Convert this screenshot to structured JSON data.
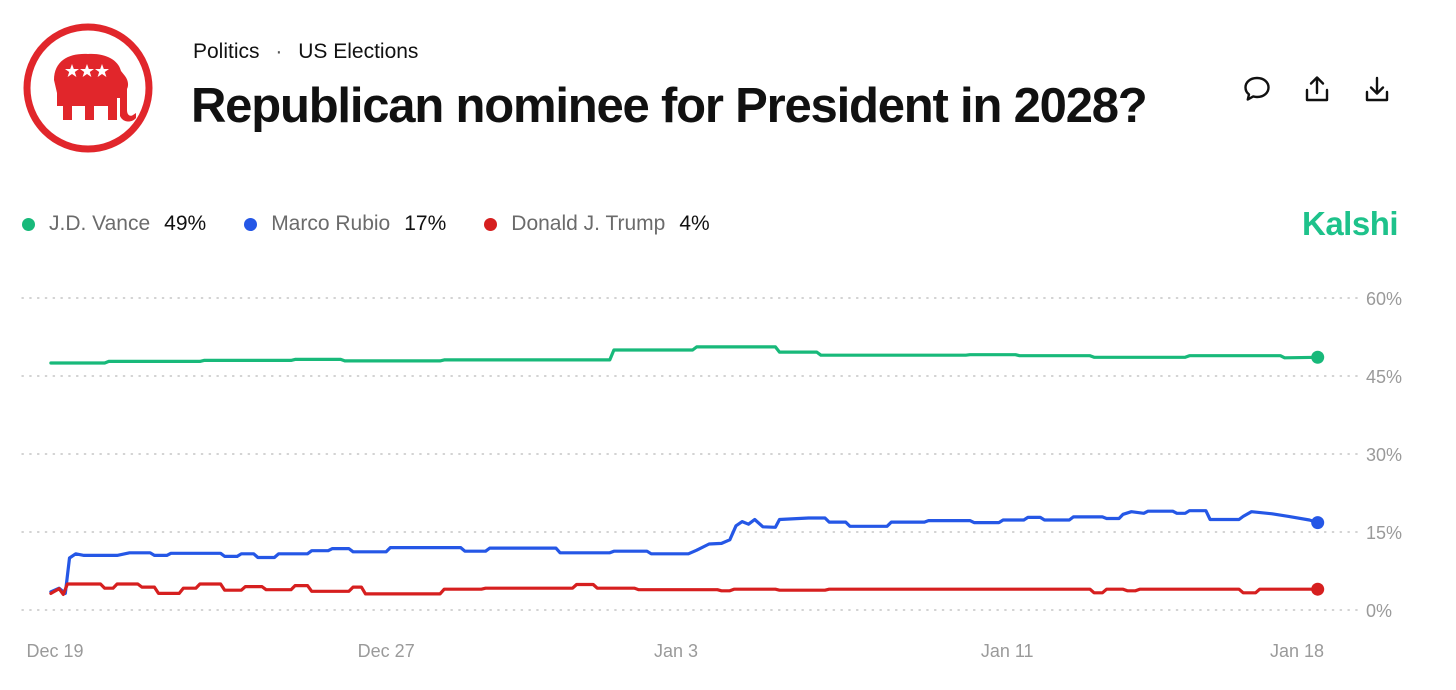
{
  "header": {
    "breadcrumb": [
      "Politics",
      "US Elections"
    ],
    "title": "Republican nominee for President in 2028?"
  },
  "brand": {
    "name": "Kalshi",
    "color": "#1ec28b"
  },
  "actions": [
    {
      "name": "comment-icon"
    },
    {
      "name": "share-icon"
    },
    {
      "name": "download-icon"
    }
  ],
  "legend": [
    {
      "name": "J.D. Vance",
      "value": "49%",
      "color": "#18b97a"
    },
    {
      "name": "Marco Rubio",
      "value": "17%",
      "color": "#2557e6"
    },
    {
      "name": "Donald J. Trump",
      "value": "4%",
      "color": "#d61f1f"
    }
  ],
  "chart_data": {
    "type": "line",
    "title": "Republican nominee for President in 2028?",
    "xlabel": "",
    "ylabel": "",
    "ylim": [
      0,
      60
    ],
    "yticks": [
      0,
      15,
      30,
      45,
      60
    ],
    "ytick_labels": [
      "0%",
      "15%",
      "30%",
      "45%",
      "60%"
    ],
    "xlim": [
      0,
      30
    ],
    "xticks": [
      {
        "t": 0,
        "label": "Dec 19"
      },
      {
        "t": 8,
        "label": "Dec 27"
      },
      {
        "t": 15,
        "label": "Jan 3"
      },
      {
        "t": 23,
        "label": "Jan 11"
      },
      {
        "t": 30,
        "label": "Jan 18"
      }
    ],
    "grid": true,
    "series": [
      {
        "name": "J.D. Vance",
        "color": "#18b97a",
        "points": [
          [
            -0.1,
            47.5
          ],
          [
            1.2,
            47.5
          ],
          [
            1.3,
            47.8
          ],
          [
            3.5,
            47.8
          ],
          [
            3.6,
            48.0
          ],
          [
            5.7,
            48.0
          ],
          [
            5.8,
            48.2
          ],
          [
            6.9,
            48.2
          ],
          [
            7.0,
            47.9
          ],
          [
            9.3,
            47.9
          ],
          [
            9.4,
            48.1
          ],
          [
            13.4,
            48.1
          ],
          [
            13.5,
            50.0
          ],
          [
            15.4,
            50.0
          ],
          [
            15.5,
            50.6
          ],
          [
            17.4,
            50.6
          ],
          [
            17.5,
            49.6
          ],
          [
            18.4,
            49.6
          ],
          [
            18.5,
            49.0
          ],
          [
            22.0,
            49.0
          ],
          [
            22.1,
            49.1
          ],
          [
            23.2,
            49.1
          ],
          [
            23.3,
            48.9
          ],
          [
            25.0,
            48.9
          ],
          [
            25.1,
            48.6
          ],
          [
            27.3,
            48.6
          ],
          [
            27.4,
            48.9
          ],
          [
            29.6,
            48.9
          ],
          [
            29.7,
            48.5
          ],
          [
            30.5,
            48.6
          ]
        ]
      },
      {
        "name": "Marco Rubio",
        "color": "#2557e6",
        "points": [
          [
            -0.1,
            3.5
          ],
          [
            0.1,
            4.2
          ],
          [
            0.25,
            3.2
          ],
          [
            0.35,
            10.0
          ],
          [
            0.5,
            10.8
          ],
          [
            0.7,
            10.5
          ],
          [
            1.5,
            10.5
          ],
          [
            1.8,
            11.0
          ],
          [
            2.3,
            11.0
          ],
          [
            2.4,
            10.5
          ],
          [
            2.7,
            10.5
          ],
          [
            2.8,
            10.9
          ],
          [
            4.0,
            10.9
          ],
          [
            4.1,
            10.3
          ],
          [
            4.4,
            10.3
          ],
          [
            4.5,
            10.8
          ],
          [
            4.8,
            10.8
          ],
          [
            4.9,
            10.1
          ],
          [
            5.3,
            10.1
          ],
          [
            5.4,
            10.8
          ],
          [
            6.1,
            10.8
          ],
          [
            6.2,
            11.4
          ],
          [
            6.6,
            11.4
          ],
          [
            6.7,
            11.8
          ],
          [
            7.1,
            11.8
          ],
          [
            7.2,
            11.2
          ],
          [
            8.0,
            11.2
          ],
          [
            8.1,
            12.0
          ],
          [
            9.8,
            12.0
          ],
          [
            9.9,
            11.3
          ],
          [
            10.4,
            11.3
          ],
          [
            10.5,
            11.9
          ],
          [
            12.1,
            11.9
          ],
          [
            12.2,
            11.0
          ],
          [
            13.4,
            11.0
          ],
          [
            13.5,
            11.3
          ],
          [
            14.3,
            11.3
          ],
          [
            14.4,
            10.8
          ],
          [
            15.3,
            10.8
          ],
          [
            15.5,
            11.5
          ],
          [
            15.8,
            12.7
          ],
          [
            16.1,
            12.8
          ],
          [
            16.3,
            13.5
          ],
          [
            16.45,
            16.2
          ],
          [
            16.6,
            17.0
          ],
          [
            16.75,
            16.5
          ],
          [
            16.9,
            17.4
          ],
          [
            17.1,
            16.0
          ],
          [
            17.4,
            15.9
          ],
          [
            17.5,
            17.4
          ],
          [
            18.2,
            17.7
          ],
          [
            18.6,
            17.7
          ],
          [
            18.7,
            16.9
          ],
          [
            19.1,
            16.9
          ],
          [
            19.2,
            16.1
          ],
          [
            20.1,
            16.1
          ],
          [
            20.2,
            16.9
          ],
          [
            21.0,
            16.9
          ],
          [
            21.1,
            17.2
          ],
          [
            22.1,
            17.2
          ],
          [
            22.2,
            16.8
          ],
          [
            22.8,
            16.8
          ],
          [
            22.9,
            17.3
          ],
          [
            23.4,
            17.3
          ],
          [
            23.5,
            17.8
          ],
          [
            23.8,
            17.8
          ],
          [
            23.9,
            17.3
          ],
          [
            24.5,
            17.3
          ],
          [
            24.6,
            17.9
          ],
          [
            25.3,
            17.9
          ],
          [
            25.4,
            17.6
          ],
          [
            25.7,
            17.6
          ],
          [
            25.8,
            18.4
          ],
          [
            26.0,
            18.9
          ],
          [
            26.3,
            18.6
          ],
          [
            26.4,
            19.0
          ],
          [
            27.0,
            19.0
          ],
          [
            27.1,
            18.6
          ],
          [
            27.3,
            18.6
          ],
          [
            27.4,
            19.1
          ],
          [
            27.8,
            19.1
          ],
          [
            27.9,
            17.4
          ],
          [
            28.6,
            17.4
          ],
          [
            28.7,
            18.0
          ],
          [
            28.9,
            18.9
          ],
          [
            29.4,
            18.5
          ],
          [
            29.8,
            18.0
          ],
          [
            30.3,
            17.3
          ],
          [
            30.5,
            16.8
          ]
        ]
      },
      {
        "name": "Donald J. Trump",
        "color": "#d61f1f",
        "points": [
          [
            -0.1,
            3.2
          ],
          [
            0.1,
            4.1
          ],
          [
            0.2,
            3.0
          ],
          [
            0.3,
            5.0
          ],
          [
            1.1,
            5.0
          ],
          [
            1.2,
            4.2
          ],
          [
            1.4,
            4.2
          ],
          [
            1.5,
            5.0
          ],
          [
            2.0,
            5.0
          ],
          [
            2.1,
            4.4
          ],
          [
            2.4,
            4.4
          ],
          [
            2.5,
            3.2
          ],
          [
            3.0,
            3.2
          ],
          [
            3.1,
            4.2
          ],
          [
            3.4,
            4.2
          ],
          [
            3.5,
            5.0
          ],
          [
            4.0,
            5.0
          ],
          [
            4.1,
            3.8
          ],
          [
            4.5,
            3.8
          ],
          [
            4.6,
            4.5
          ],
          [
            5.0,
            4.5
          ],
          [
            5.1,
            3.9
          ],
          [
            5.7,
            3.9
          ],
          [
            5.8,
            4.7
          ],
          [
            6.1,
            4.7
          ],
          [
            6.2,
            3.6
          ],
          [
            7.1,
            3.6
          ],
          [
            7.2,
            4.4
          ],
          [
            7.4,
            4.4
          ],
          [
            7.5,
            3.1
          ],
          [
            9.3,
            3.1
          ],
          [
            9.4,
            4.0
          ],
          [
            10.3,
            4.0
          ],
          [
            10.4,
            4.2
          ],
          [
            12.5,
            4.2
          ],
          [
            12.6,
            4.9
          ],
          [
            13.0,
            4.9
          ],
          [
            13.1,
            4.2
          ],
          [
            14.0,
            4.2
          ],
          [
            14.1,
            3.9
          ],
          [
            16.0,
            3.9
          ],
          [
            16.1,
            3.7
          ],
          [
            16.3,
            3.7
          ],
          [
            16.4,
            4.0
          ],
          [
            17.4,
            4.0
          ],
          [
            17.5,
            3.8
          ],
          [
            18.6,
            3.8
          ],
          [
            18.7,
            4.0
          ],
          [
            25.0,
            4.0
          ],
          [
            25.1,
            3.3
          ],
          [
            25.3,
            3.3
          ],
          [
            25.4,
            4.0
          ],
          [
            25.8,
            4.0
          ],
          [
            25.9,
            3.7
          ],
          [
            26.1,
            3.7
          ],
          [
            26.2,
            4.0
          ],
          [
            28.6,
            4.0
          ],
          [
            28.7,
            3.3
          ],
          [
            29.0,
            3.3
          ],
          [
            29.1,
            4.0
          ],
          [
            30.5,
            4.0
          ]
        ]
      }
    ]
  }
}
